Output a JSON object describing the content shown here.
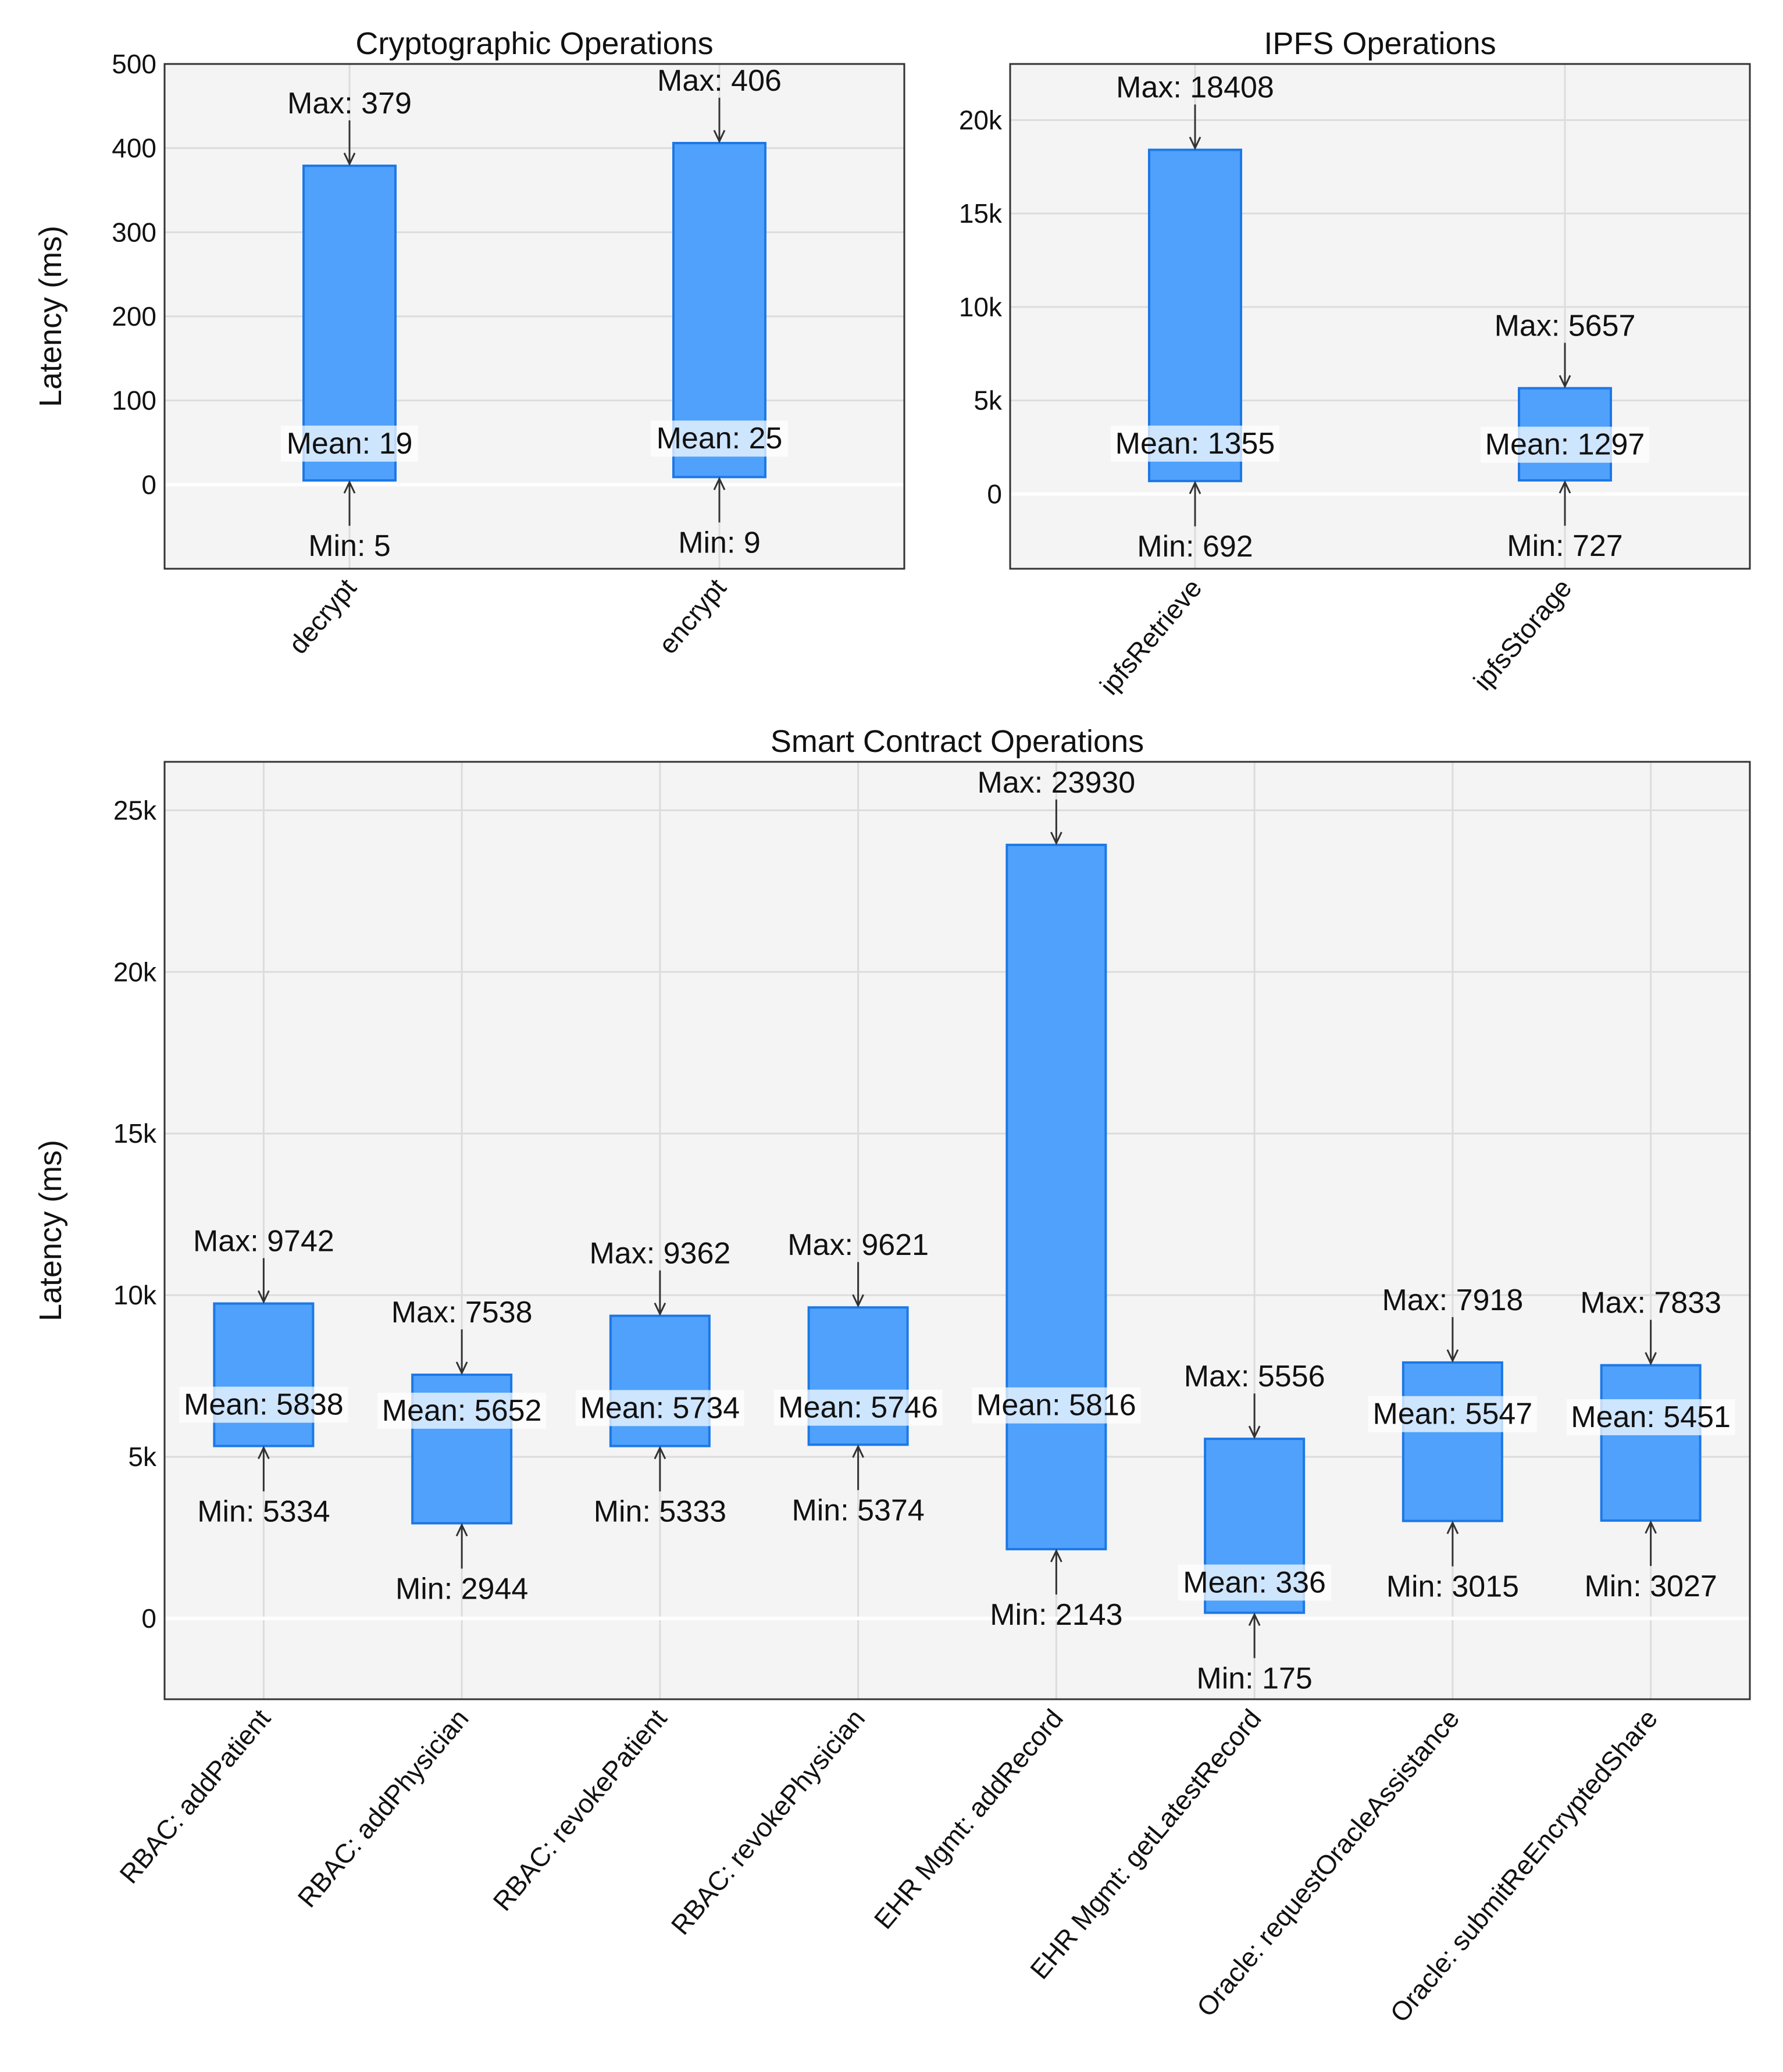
{
  "colors": {
    "bar_fill": "#4fa1fb",
    "bar_stroke": "#1c78e6",
    "plot_bg": "#f4f4f4",
    "grid": "#dcdcdc",
    "zero_line": "#ffffff",
    "mean_band": "#ffffff"
  },
  "chart_data": [
    {
      "type": "bar",
      "title": "Cryptographic Operations",
      "ylabel": "Latency (ms)",
      "ylim": [
        -100,
        500
      ],
      "yticks": [
        0,
        100,
        200,
        300,
        400,
        500
      ],
      "ytick_labels": [
        "0",
        "100",
        "200",
        "300",
        "400",
        "500"
      ],
      "grid": true,
      "categories": [
        "decrypt",
        "encrypt"
      ],
      "min": [
        5,
        9
      ],
      "max": [
        379,
        406
      ],
      "mean": [
        19,
        25
      ],
      "min_labels": [
        "Min: 5",
        "Min: 9"
      ],
      "max_labels": [
        "Max: 379",
        "Max: 406"
      ],
      "mean_labels": [
        "Mean: 19",
        "Mean: 25"
      ]
    },
    {
      "type": "bar",
      "title": "IPFS Operations",
      "ylabel": "",
      "ylim": [
        -4000,
        23000
      ],
      "yticks": [
        0,
        5000,
        10000,
        15000,
        20000
      ],
      "ytick_labels": [
        "0",
        "5k",
        "10k",
        "15k",
        "20k"
      ],
      "grid": true,
      "categories": [
        "ipfsRetrieve",
        "ipfsStorage"
      ],
      "min": [
        692,
        727
      ],
      "max": [
        18408,
        5657
      ],
      "mean": [
        1355,
        1297
      ],
      "min_labels": [
        "Min: 692",
        "Min: 727"
      ],
      "max_labels": [
        "Max: 18408",
        "Max: 5657"
      ],
      "mean_labels": [
        "Mean: 1355",
        "Mean: 1297"
      ]
    },
    {
      "type": "bar",
      "title": "Smart Contract Operations",
      "ylabel": "Latency (ms)",
      "ylim": [
        -2500,
        26500
      ],
      "yticks": [
        0,
        5000,
        10000,
        15000,
        20000,
        25000
      ],
      "ytick_labels": [
        "0",
        "5k",
        "10k",
        "15k",
        "20k",
        "25k"
      ],
      "grid": true,
      "categories": [
        "RBAC: addPatient",
        "RBAC: addPhysician",
        "RBAC: revokePatient",
        "RBAC: revokePhysician",
        "EHR Mgmt: addRecord",
        "EHR Mgmt: getLatestRecord",
        "Oracle: requestOracleAssistance",
        "Oracle: submitReEncryptedShare"
      ],
      "min": [
        5334,
        2944,
        5333,
        5374,
        2143,
        175,
        3015,
        3027
      ],
      "max": [
        9742,
        7538,
        9362,
        9621,
        23930,
        5556,
        7918,
        7833
      ],
      "mean": [
        5838,
        5652,
        5734,
        5746,
        5816,
        336,
        5547,
        5451
      ],
      "min_labels": [
        "Min: 5334",
        "Min: 2944",
        "Min: 5333",
        "Min: 5374",
        "Min: 2143",
        "Min: 175",
        "Min: 3015",
        "Min: 3027"
      ],
      "max_labels": [
        "Max: 9742",
        "Max: 7538",
        "Max: 9362",
        "Max: 9621",
        "Max: 23930",
        "Max: 5556",
        "Max: 7918",
        "Max: 7833"
      ],
      "mean_labels": [
        "Mean: 5838",
        "Mean: 5652",
        "Mean: 5734",
        "Mean: 5746",
        "Mean: 5816",
        "Mean: 336",
        "Mean: 5547",
        "Mean: 5451"
      ]
    }
  ]
}
